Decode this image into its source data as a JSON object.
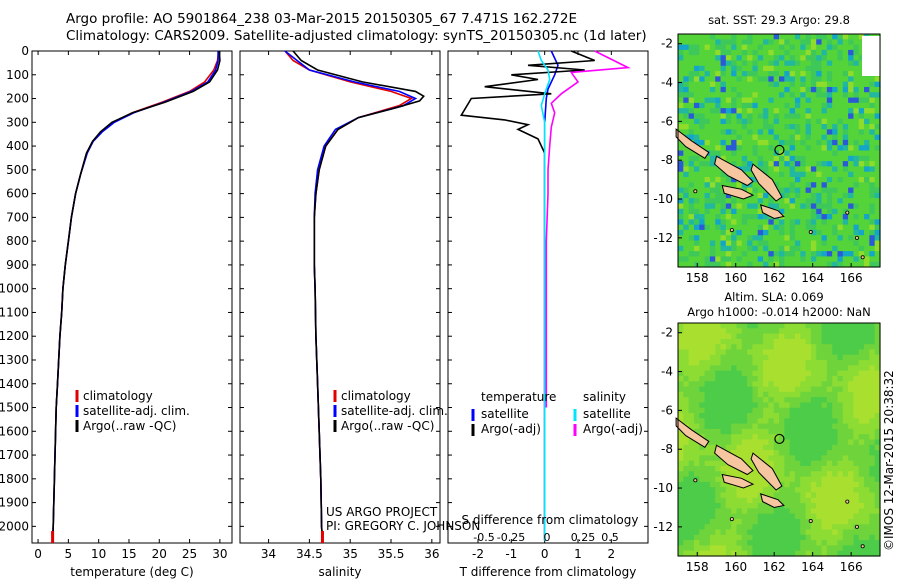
{
  "header": {
    "title_line1": "Argo profile: AO 5901864_238 03-Mar-2015 20150305_67 7.471S 162.272E",
    "title_line2": "Climatology: CARS2009. Satellite-adjusted climatology: synTS_20150305.nc (1d later)"
  },
  "colors": {
    "climatology": "#e00000",
    "satellite": "#0000ff",
    "argo": "#000000",
    "satellite_sal": "#00e5ff",
    "argo_sal": "#ff00ff"
  },
  "chart_data": [
    {
      "type": "line",
      "name": "temperature-profile",
      "xlabel": "temperature (deg C)",
      "ylabel": "",
      "xlim": [
        -1,
        32
      ],
      "ylim": [
        2070,
        0
      ],
      "y_inverted": true,
      "xticks": [
        0,
        5,
        10,
        15,
        20,
        25,
        30
      ],
      "yticks": [
        0,
        100,
        200,
        300,
        400,
        500,
        600,
        700,
        800,
        900,
        1000,
        1100,
        1200,
        1300,
        1400,
        1500,
        1600,
        1700,
        1800,
        1900,
        2000
      ],
      "legend": [
        "climatology",
        "satellite-adj. clim.",
        "Argo(..raw -QC)"
      ],
      "legend_position": "bottom-center",
      "series": [
        {
          "name": "climatology",
          "color": "#e00000",
          "points": [
            [
              29.8,
              0
            ],
            [
              29.6,
              40
            ],
            [
              29.0,
              80
            ],
            [
              27.5,
              130
            ],
            [
              25.0,
              170
            ],
            [
              20.5,
              215
            ],
            [
              15.5,
              260
            ],
            [
              12.5,
              300
            ],
            [
              10.5,
              340
            ],
            [
              9.0,
              380
            ],
            [
              8.0,
              430
            ],
            [
              7.0,
              520
            ],
            [
              6.2,
              600
            ],
            [
              5.5,
              700
            ],
            [
              5.0,
              800
            ],
            [
              4.5,
              900
            ],
            [
              4.1,
              1000
            ],
            [
              3.9,
              1100
            ],
            [
              3.6,
              1200
            ],
            [
              3.4,
              1300
            ],
            [
              3.2,
              1400
            ],
            [
              3.0,
              1500
            ],
            [
              2.9,
              1600
            ],
            [
              2.8,
              1700
            ],
            [
              2.7,
              1800
            ],
            [
              2.6,
              1900
            ],
            [
              2.5,
              2000
            ],
            [
              2.4,
              2060
            ]
          ]
        },
        {
          "name": "satellite-adj. clim.",
          "color": "#0000ff",
          "points": [
            [
              29.7,
              0
            ],
            [
              29.7,
              40
            ],
            [
              29.3,
              80
            ],
            [
              28.0,
              130
            ],
            [
              25.3,
              170
            ],
            [
              20.8,
              215
            ],
            [
              15.8,
              260
            ],
            [
              12.6,
              300
            ],
            [
              10.6,
              340
            ],
            [
              9.1,
              380
            ],
            [
              8.1,
              430
            ],
            [
              7.0,
              520
            ],
            [
              6.2,
              600
            ],
            [
              5.5,
              700
            ],
            [
              5.0,
              800
            ],
            [
              4.5,
              900
            ],
            [
              4.1,
              1000
            ],
            [
              3.9,
              1100
            ],
            [
              3.6,
              1200
            ],
            [
              3.4,
              1300
            ],
            [
              3.2,
              1400
            ],
            [
              3.0,
              1500
            ],
            [
              2.9,
              1600
            ],
            [
              2.8,
              1700
            ],
            [
              2.7,
              1800
            ],
            [
              2.6,
              1900
            ],
            [
              2.5,
              2000
            ],
            [
              2.4,
              2060
            ]
          ]
        },
        {
          "name": "Argo(..raw -QC)",
          "color": "#000000",
          "points": [
            [
              29.9,
              0
            ],
            [
              30.0,
              40
            ],
            [
              29.6,
              80
            ],
            [
              28.3,
              130
            ],
            [
              25.6,
              170
            ],
            [
              21.0,
              215
            ],
            [
              15.6,
              260
            ],
            [
              12.2,
              300
            ],
            [
              10.3,
              340
            ],
            [
              9.0,
              380
            ],
            [
              8.0,
              430
            ],
            [
              7.0,
              520
            ],
            [
              6.2,
              600
            ],
            [
              5.5,
              700
            ],
            [
              5.0,
              800
            ],
            [
              4.5,
              900
            ],
            [
              4.1,
              1000
            ],
            [
              3.9,
              1100
            ],
            [
              3.6,
              1200
            ],
            [
              3.4,
              1300
            ],
            [
              3.2,
              1400
            ],
            [
              3.0,
              1500
            ],
            [
              2.9,
              1600
            ],
            [
              2.8,
              1700
            ],
            [
              2.7,
              1800
            ],
            [
              2.6,
              1900
            ],
            [
              2.5,
              2000
            ],
            [
              2.45,
              2060
            ]
          ]
        }
      ]
    },
    {
      "type": "line",
      "name": "salinity-profile",
      "xlabel": "salinity",
      "xlim": [
        33.65,
        36.1
      ],
      "ylim": [
        2070,
        0
      ],
      "y_inverted": true,
      "xticks": [
        34,
        34.5,
        35,
        35.5,
        36
      ],
      "legend": [
        "climatology",
        "satellite-adj. clim.",
        "Argo(..raw -QC)"
      ],
      "legend_position": "bottom-center",
      "annotation": [
        "US ARGO PROJECT",
        "PI: GREGORY C. JOHNSON"
      ],
      "series": [
        {
          "name": "climatology",
          "color": "#e00000",
          "points": [
            [
              34.2,
              0
            ],
            [
              34.3,
              40
            ],
            [
              34.5,
              80
            ],
            [
              35.0,
              130
            ],
            [
              35.5,
              170
            ],
            [
              35.75,
              200
            ],
            [
              35.6,
              230
            ],
            [
              35.1,
              280
            ],
            [
              34.85,
              330
            ],
            [
              34.7,
              400
            ],
            [
              34.62,
              500
            ],
            [
              34.58,
              600
            ],
            [
              34.56,
              700
            ],
            [
              34.56,
              800
            ],
            [
              34.56,
              900
            ],
            [
              34.57,
              1000
            ],
            [
              34.58,
              1200
            ],
            [
              34.6,
              1400
            ],
            [
              34.62,
              1600
            ],
            [
              34.64,
              1800
            ],
            [
              34.65,
              2000
            ],
            [
              34.66,
              2060
            ]
          ]
        },
        {
          "name": "satellite-adj. clim.",
          "color": "#0000ff",
          "points": [
            [
              34.2,
              0
            ],
            [
              34.35,
              40
            ],
            [
              34.5,
              80
            ],
            [
              35.05,
              130
            ],
            [
              35.6,
              170
            ],
            [
              35.8,
              200
            ],
            [
              35.65,
              230
            ],
            [
              35.1,
              280
            ],
            [
              34.82,
              330
            ],
            [
              34.68,
              400
            ],
            [
              34.6,
              500
            ],
            [
              34.57,
              600
            ],
            [
              34.56,
              700
            ],
            [
              34.56,
              800
            ],
            [
              34.56,
              900
            ],
            [
              34.57,
              1000
            ],
            [
              34.58,
              1200
            ],
            [
              34.6,
              1400
            ],
            [
              34.62,
              1600
            ],
            [
              34.64,
              1800
            ],
            [
              34.65,
              2000
            ],
            [
              34.66,
              2060
            ]
          ]
        },
        {
          "name": "Argo(..raw -QC)",
          "color": "#000000",
          "points": [
            [
              34.3,
              0
            ],
            [
              34.4,
              40
            ],
            [
              34.6,
              80
            ],
            [
              35.15,
              130
            ],
            [
              35.8,
              170
            ],
            [
              35.9,
              190
            ],
            [
              35.85,
              210
            ],
            [
              35.55,
              240
            ],
            [
              35.1,
              280
            ],
            [
              34.85,
              330
            ],
            [
              34.7,
              400
            ],
            [
              34.62,
              500
            ],
            [
              34.58,
              600
            ],
            [
              34.56,
              700
            ],
            [
              34.56,
              800
            ],
            [
              34.56,
              900
            ],
            [
              34.57,
              1000
            ],
            [
              34.58,
              1200
            ],
            [
              34.6,
              1400
            ],
            [
              34.62,
              1600
            ],
            [
              34.64,
              1800
            ],
            [
              34.65,
              2000
            ],
            [
              34.66,
              2060
            ]
          ]
        }
      ]
    },
    {
      "type": "line",
      "name": "difference-profile",
      "xlabel": "T difference from climatology",
      "x2label": "S difference from climatology",
      "xlim": [
        -2.9,
        3.1
      ],
      "ylim": [
        2070,
        0
      ],
      "y_inverted": true,
      "xticks": [
        -2,
        -1,
        0,
        1,
        2
      ],
      "x2ticks": [
        -0.5,
        -0.25,
        0,
        0.25,
        0.5
      ],
      "legend_left_title": "temperature",
      "legend_left": [
        "satellite",
        "Argo(-adj)"
      ],
      "legend_right_title": "salinity",
      "legend_right": [
        "satellite",
        "Argo(-adj)"
      ],
      "series": [
        {
          "name": "temperature satellite",
          "color": "#0000ff",
          "points": [
            [
              0.2,
              0
            ],
            [
              0.4,
              60
            ],
            [
              0.3,
              100
            ],
            [
              0.1,
              160
            ],
            [
              0.05,
              200
            ],
            [
              0,
              300
            ],
            [
              0,
              600
            ],
            [
              0,
              1000
            ],
            [
              0,
              1500
            ],
            [
              0,
              2060
            ]
          ]
        },
        {
          "name": "temperature Argo(-adj)",
          "color": "#000000",
          "points": [
            [
              0.8,
              0
            ],
            [
              1.5,
              40
            ],
            [
              -0.5,
              60
            ],
            [
              1.2,
              80
            ],
            [
              -1.0,
              100
            ],
            [
              -0.2,
              120
            ],
            [
              -1.8,
              150
            ],
            [
              0.2,
              180
            ],
            [
              -2.2,
              200
            ],
            [
              -2.5,
              270
            ],
            [
              -1.2,
              290
            ],
            [
              -0.5,
              310
            ],
            [
              -0.8,
              330
            ],
            [
              -0.2,
              370
            ],
            [
              0,
              430
            ],
            [
              0,
              600
            ],
            [
              0,
              1000
            ],
            [
              0,
              1500
            ],
            [
              0,
              2060
            ]
          ]
        },
        {
          "name": "salinity satellite",
          "color": "#00e5ff",
          "points": [
            [
              -0.2,
              0
            ],
            [
              -0.1,
              40
            ],
            [
              0.1,
              80
            ],
            [
              0.15,
              120
            ],
            [
              0.0,
              180
            ],
            [
              -0.1,
              230
            ],
            [
              0,
              300
            ],
            [
              0,
              600
            ],
            [
              0,
              1000
            ],
            [
              0,
              1500
            ],
            [
              0,
              2060
            ]
          ]
        },
        {
          "name": "salinity Argo(-adj)",
          "color": "#ff00ff",
          "points": [
            [
              1.5,
              0
            ],
            [
              2.5,
              70
            ],
            [
              0.8,
              90
            ],
            [
              1.0,
              130
            ],
            [
              0.5,
              180
            ],
            [
              0.2,
              220
            ],
            [
              0.3,
              260
            ],
            [
              0.2,
              320
            ],
            [
              0.15,
              400
            ],
            [
              0.1,
              500
            ],
            [
              0.1,
              600
            ],
            [
              0.05,
              800
            ],
            [
              0.05,
              1000
            ],
            [
              0.05,
              1500
            ]
          ]
        }
      ]
    },
    {
      "type": "heatmap",
      "name": "sst-map",
      "title": "sat. SST: 29.3 Argo: 29.8",
      "xticks": [
        158,
        160,
        162,
        164,
        166
      ],
      "yticks": [
        -2,
        -4,
        -6,
        -8,
        -10,
        -12
      ],
      "xlim": [
        157,
        167.5
      ],
      "ylim": [
        -13.5,
        -1.5
      ],
      "profile_location": [
        162.272,
        -7.471
      ]
    },
    {
      "type": "heatmap",
      "name": "sla-map",
      "title": "Altim. SLA: 0.069",
      "subtitle": "Argo h1000: -0.014 h2000: NaN",
      "xticks": [
        158,
        160,
        162,
        164,
        166
      ],
      "yticks": [
        -2,
        -4,
        -6,
        -8,
        -10,
        -12
      ],
      "xlim": [
        157,
        167.5
      ],
      "ylim": [
        -13.5,
        -1.5
      ],
      "profile_location": [
        162.272,
        -7.471
      ]
    }
  ],
  "footer": {
    "credit": "©IMOS 12-Mar-2015 20:38:32"
  }
}
